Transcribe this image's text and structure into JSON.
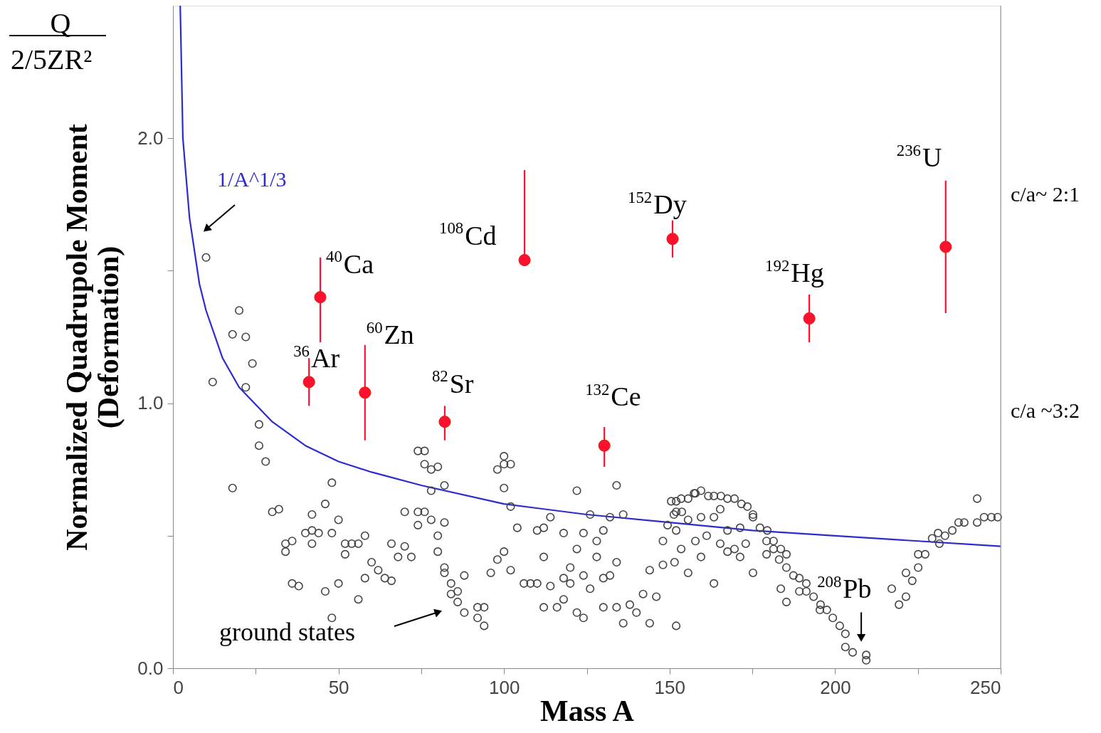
{
  "chart_data": {
    "type": "scatter",
    "xlabel": "Mass A",
    "ylabel": "Normalized Quadrupole Moment\n(Deformation)",
    "xlim": [
      0,
      250
    ],
    "xticks": [
      0,
      {
        "value": 25,
        "label": null
      },
      50,
      {
        "value": 75,
        "label": null
      },
      100,
      {
        "value": 125,
        "label": null
      },
      150,
      {
        "value": 175,
        "label": null
      },
      200,
      {
        "value": 225,
        "label": null
      },
      250
    ],
    "ylim": [
      0,
      2.5
    ],
    "yticks": [
      {
        "value": 0,
        "label": "0.0"
      },
      {
        "value": 0.5,
        "label": null
      },
      {
        "value": 1,
        "label": "1.0"
      },
      {
        "value": 1.5,
        "label": null
      },
      {
        "value": 2,
        "label": "2.0"
      }
    ],
    "grid": false,
    "series": [
      {
        "type": "line",
        "line_style": "solid",
        "color": "#2b2bd0",
        "x": [
          2.2,
          3,
          5,
          8,
          10,
          15,
          20,
          30,
          40,
          50,
          60,
          75,
          100,
          125,
          150,
          175,
          200,
          225,
          250
        ],
        "values": [
          2.5,
          2.0,
          1.7,
          1.45,
          1.35,
          1.17,
          1.06,
          0.93,
          0.84,
          0.78,
          0.74,
          0.69,
          0.62,
          0.58,
          0.55,
          0.52,
          0.5,
          0.48,
          0.46
        ]
      },
      {
        "color": "#444444",
        "marker": "circle",
        "x": [
          10,
          12,
          20,
          18,
          22,
          24,
          22,
          18,
          26,
          26,
          28,
          30,
          32,
          34,
          34,
          36,
          36,
          38,
          40,
          42,
          42,
          42,
          44,
          46,
          46,
          48,
          48,
          48,
          50,
          50,
          52,
          52,
          54,
          56,
          56,
          58,
          58,
          60,
          62,
          64,
          66,
          66,
          68,
          70,
          70,
          72,
          74,
          74,
          74,
          76,
          76,
          76,
          78,
          78,
          78,
          80,
          80,
          80,
          82,
          82,
          82,
          82,
          84,
          84,
          86,
          86,
          88,
          88,
          92,
          92,
          94,
          94,
          96,
          98,
          98,
          100,
          100,
          100,
          100,
          102,
          102,
          102,
          104,
          106,
          108,
          110,
          110,
          112,
          112,
          114,
          114,
          112,
          116,
          118,
          118,
          118,
          120,
          120,
          122,
          122,
          122,
          124,
          124,
          124,
          126,
          126,
          128,
          128,
          130,
          130,
          130,
          132,
          132,
          134,
          134,
          134,
          136,
          136,
          138,
          140,
          142,
          144,
          144,
          146,
          148,
          148,
          152,
          152,
          152,
          152,
          150.5,
          153.5,
          155.6,
          157.8,
          151.3,
          153.7,
          149.4,
          155.6,
          157.8,
          153.5,
          151.5,
          155.6,
          157.4,
          159.5,
          161.7,
          163.4,
          165.5,
          167.5,
          169.6,
          171.7,
          173.5,
          175.2,
          175.2,
          177.3,
          179.5,
          179.3,
          181.4,
          179.3,
          181.4,
          183.6,
          185.3,
          183.1,
          185.3,
          187.4,
          189.2,
          191.3,
          189.2,
          191.3,
          193.5,
          195.6,
          195.4,
          197.5,
          199.3,
          201.4,
          203.1,
          203.1,
          205.3,
          209.4,
          209.4,
          183.6,
          185.3,
          175.2,
          163.4,
          159.5,
          161.2,
          165.3,
          167.5,
          169.6,
          171.3,
          173,
          171.3,
          167.5,
          159.5,
          163.4,
          165.3,
          217.1,
          219.3,
          221.4,
          221.4,
          223.3,
          225.1,
          225.1,
          227.2,
          229.3,
          231.1,
          231.5,
          233.2,
          235.4,
          237.3,
          239,
          242.9,
          242.9,
          245,
          247.2,
          249.1
        ],
        "values": [
          1.55,
          1.08,
          1.35,
          1.26,
          1.25,
          1.15,
          1.06,
          0.68,
          0.92,
          0.84,
          0.78,
          0.59,
          0.6,
          0.47,
          0.44,
          0.48,
          0.32,
          0.31,
          0.51,
          0.58,
          0.52,
          0.47,
          0.51,
          0.62,
          0.29,
          0.7,
          0.51,
          0.19,
          0.56,
          0.32,
          0.47,
          0.43,
          0.47,
          0.47,
          0.26,
          0.5,
          0.34,
          0.4,
          0.37,
          0.34,
          0.33,
          0.47,
          0.42,
          0.59,
          0.46,
          0.42,
          0.82,
          0.59,
          0.54,
          0.82,
          0.77,
          0.59,
          0.75,
          0.67,
          0.56,
          0.76,
          0.5,
          0.44,
          0.69,
          0.55,
          0.38,
          0.36,
          0.32,
          0.28,
          0.29,
          0.25,
          0.35,
          0.21,
          0.23,
          0.19,
          0.16,
          0.23,
          0.36,
          0.41,
          0.75,
          0.77,
          0.8,
          0.68,
          0.44,
          0.37,
          0.61,
          0.77,
          0.53,
          0.32,
          0.32,
          0.32,
          0.52,
          0.53,
          0.42,
          0.57,
          0.31,
          0.23,
          0.23,
          0.34,
          0.26,
          0.51,
          0.38,
          0.32,
          0.45,
          0.67,
          0.21,
          0.19,
          0.51,
          0.35,
          0.58,
          0.3,
          0.42,
          0.48,
          0.23,
          0.34,
          0.52,
          0.57,
          0.35,
          0.69,
          0.4,
          0.23,
          0.17,
          0.58,
          0.24,
          0.21,
          0.28,
          0.17,
          0.37,
          0.27,
          0.48,
          0.39,
          0.52,
          0.63,
          0.16,
          0.59,
          0.63,
          0.64,
          0.64,
          0.66,
          0.58,
          0.59,
          0.54,
          0.56,
          0.48,
          0.45,
          0.4,
          0.36,
          0.66,
          0.67,
          0.65,
          0.65,
          0.65,
          0.64,
          0.64,
          0.62,
          0.61,
          0.58,
          0.57,
          0.53,
          0.52,
          0.48,
          0.48,
          0.43,
          0.45,
          0.45,
          0.43,
          0.41,
          0.38,
          0.35,
          0.34,
          0.32,
          0.29,
          0.29,
          0.27,
          0.24,
          0.22,
          0.22,
          0.19,
          0.16,
          0.13,
          0.08,
          0.06,
          0.05,
          0.03,
          0.3,
          0.25,
          0.36,
          0.32,
          0.42,
          0.5,
          0.47,
          0.44,
          0.45,
          0.42,
          0.47,
          0.53,
          0.52,
          0.57,
          0.57,
          0.6,
          0.3,
          0.24,
          0.27,
          0.36,
          0.33,
          0.38,
          0.43,
          0.43,
          0.49,
          0.51,
          0.47,
          0.5,
          0.52,
          0.55,
          0.55,
          0.64,
          0.55,
          0.57,
          0.57,
          0.57
        ]
      },
      {
        "color": "#ff1030",
        "marker": "circle",
        "x": [
          41.1,
          44.5,
          58,
          82.1,
          106.2,
          130.3,
          150.9,
          192.2,
          233.4
        ],
        "values": [
          1.08,
          1.4,
          1.04,
          0.93,
          1.54,
          0.84,
          1.62,
          1.32,
          1.59
        ],
        "errors": [
          [
            0.99,
            1.17
          ],
          [
            1.23,
            1.55
          ],
          [
            0.86,
            1.22
          ],
          [
            0.86,
            0.99
          ],
          [
            1.54,
            1.88
          ],
          [
            0.76,
            0.91
          ],
          [
            1.55,
            1.69
          ],
          [
            1.23,
            1.41
          ],
          [
            1.34,
            1.84
          ]
        ]
      }
    ],
    "annotations": [
      "1/A^1/3",
      {
        "text": "$^{36}$Ar",
        "x": 41.1,
        "y": 1.08
      },
      {
        "text": "$^{40}$Ca",
        "x": 44.5,
        "y": 1.4
      },
      {
        "text": "$^{60}$Zn",
        "x": 58,
        "y": 1.04
      },
      {
        "text": "$^{82}$Sr",
        "x": 82.1,
        "y": 0.93
      },
      {
        "text": "$^{108}$Cd",
        "x": 106.2,
        "y": 1.54
      },
      {
        "text": "$^{132}$Ce",
        "x": 130.3,
        "y": 0.84
      },
      {
        "text": "$^{152}$Dy",
        "x": 150.9,
        "y": 1.62
      },
      {
        "text": "$^{192}$Hg",
        "x": 192.2,
        "y": 1.32
      },
      {
        "text": "$^{236}$U",
        "x": 233.4,
        "y": 1.59
      },
      {
        "text": "$^{208}$Pb",
        "x": 209.4,
        "y": 0.05
      },
      "ground states",
      "c/a~ 2:1",
      "c/a ~3:2",
      "Q",
      "2/5ZR²"
    ]
  }
}
